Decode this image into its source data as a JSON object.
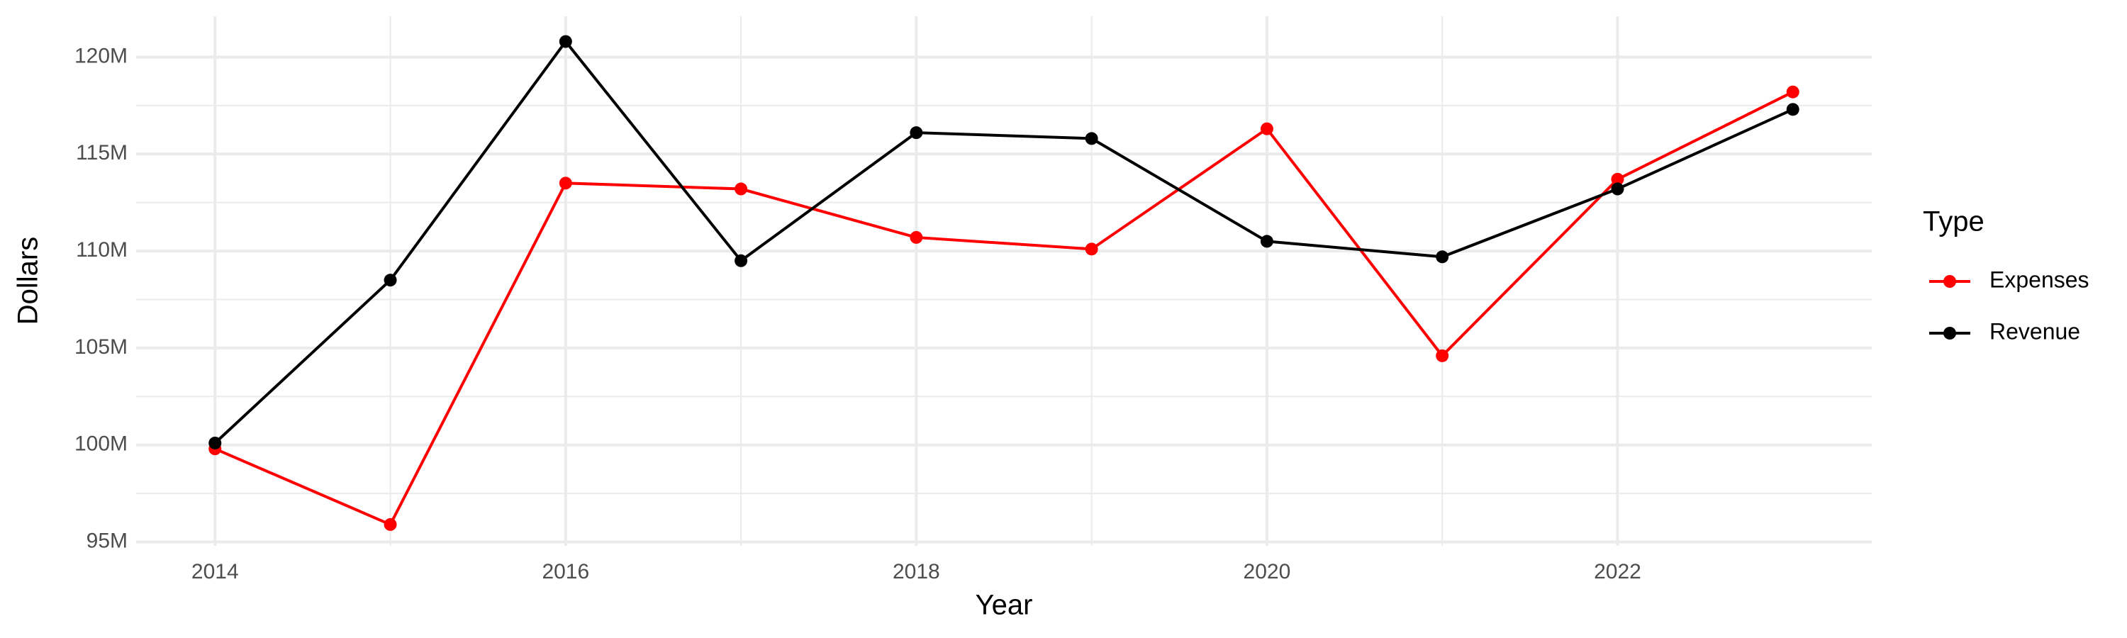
{
  "chart_data": {
    "type": "line",
    "x_label": "Year",
    "y_label": "Dollars",
    "legend_title": "Type",
    "x": [
      2014,
      2015,
      2016,
      2017,
      2018,
      2019,
      2020,
      2021,
      2022,
      2023
    ],
    "series": [
      {
        "name": "Expenses",
        "color": "#ff0000",
        "values": [
          99800000,
          95900000,
          113500000,
          113200000,
          110700000,
          110100000,
          116300000,
          104600000,
          113700000,
          118200000
        ]
      },
      {
        "name": "Revenue",
        "color": "#000000",
        "values": [
          100100000,
          108500000,
          120800000,
          109500000,
          116100000,
          115800000,
          110500000,
          109700000,
          113200000,
          117300000
        ]
      }
    ],
    "xlim": [
      2013.55,
      2023.45
    ],
    "xticks": [
      2014,
      2016,
      2018,
      2020,
      2022
    ],
    "ylim": [
      94800000,
      122100000
    ],
    "yticks": [
      {
        "value": 95000000,
        "label": "95M"
      },
      {
        "value": 100000000,
        "label": "100M"
      },
      {
        "value": 105000000,
        "label": "105M"
      },
      {
        "value": 110000000,
        "label": "110M"
      },
      {
        "value": 115000000,
        "label": "115M"
      },
      {
        "value": 120000000,
        "label": "120M"
      }
    ],
    "grid": true,
    "legend": "right"
  }
}
